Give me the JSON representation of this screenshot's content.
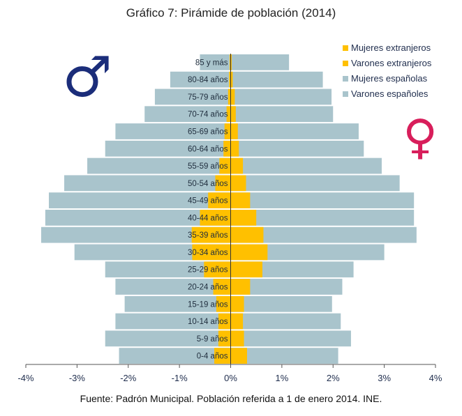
{
  "title": "Gráfico 7: Pirámide de población (2014)",
  "source": "Fuente: Padrón Municipal. Población referida a 1 de enero 2014. INE.",
  "symbols": {
    "male": "♂",
    "female": "♀",
    "male_color": "#1b2d7a",
    "female_color": "#d81e5b"
  },
  "colors": {
    "extranjeros": "#ffc000",
    "espanoles": "#a9c4cc"
  },
  "chart_data": {
    "type": "bar",
    "orientation": "horizontal",
    "stacked": "overlay",
    "title": "Gráfico 7: Pirámide de población (2014)",
    "xlabel": "",
    "ylabel": "",
    "xlim": [
      -4,
      4
    ],
    "x_ticks": [
      -4,
      -3,
      -2,
      -1,
      0,
      1,
      2,
      3,
      4
    ],
    "x_tick_labels": [
      "-4%",
      "-3%",
      "-2%",
      "-1%",
      "0%",
      "1%",
      "2%",
      "3%",
      "4%"
    ],
    "legend_position": "top-right",
    "categories": [
      "0-4 años",
      "5-9 años",
      "10-14 años",
      "15-19 años",
      "20-24 años",
      "25-29 años",
      "30-34 años",
      "35-39 años",
      "40-44 años",
      "45-49 años",
      "50-54 años",
      "55-59 años",
      "60-64 años",
      "65-69 años",
      "70-74 años",
      "75-79 años",
      "80-84 años",
      "85 y más"
    ],
    "legend": [
      "Mujeres extranjeros",
      "Varones extranjeros",
      "Mujeres españolas",
      "Varones españoles"
    ],
    "series": [
      {
        "name": "Mujeres extranjeros",
        "color": "#ffc000",
        "values": [
          0.32,
          0.26,
          0.24,
          0.26,
          0.38,
          0.62,
          0.72,
          0.64,
          0.5,
          0.38,
          0.3,
          0.24,
          0.16,
          0.14,
          0.1,
          0.08,
          0.04,
          0.02
        ]
      },
      {
        "name": "Varones extranjeros",
        "color": "#ffc000",
        "values": [
          -0.32,
          -0.24,
          -0.24,
          -0.28,
          -0.34,
          -0.52,
          -0.75,
          -0.76,
          -0.6,
          -0.44,
          -0.3,
          -0.22,
          -0.14,
          -0.12,
          -0.08,
          -0.05,
          -0.03,
          -0.02
        ]
      },
      {
        "name": "Mujeres españolas",
        "color": "#a9c4cc",
        "values": [
          2.1,
          2.35,
          2.15,
          1.98,
          2.18,
          2.4,
          3.0,
          3.63,
          3.58,
          3.58,
          3.3,
          2.95,
          2.6,
          2.5,
          2.0,
          1.97,
          1.8,
          1.14
        ]
      },
      {
        "name": "Varones españoles",
        "color": "#a9c4cc",
        "values": [
          -2.18,
          -2.45,
          -2.25,
          -2.07,
          -2.25,
          -2.45,
          -3.05,
          -3.7,
          -3.62,
          -3.55,
          -3.25,
          -2.8,
          -2.45,
          -2.25,
          -1.68,
          -1.48,
          -1.18,
          -0.6
        ]
      }
    ]
  }
}
